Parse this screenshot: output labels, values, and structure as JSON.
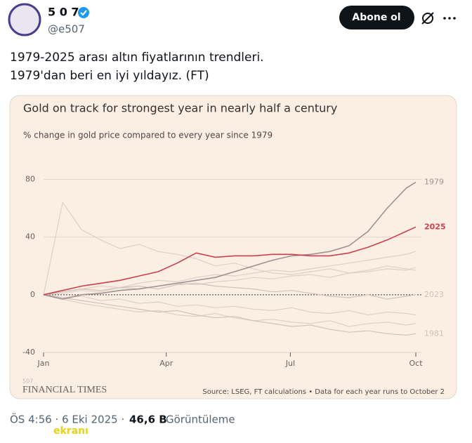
{
  "tweet": {
    "name": "5 0 7",
    "handle": "@e507",
    "button": "Abone ol",
    "text": [
      "1979-2025 arası altın fiyatlarının trendleri.",
      "1979'dan beri en iyi yıldayız. (FT)"
    ],
    "time": "ÖS 4:56 · 6 Eki 2025 ·",
    "views": "46,6 B",
    "views_label": "Görüntüleme",
    "watermark": "ekranı"
  },
  "chart_data": {
    "type": "line",
    "title": "Gold on track for strongest year in nearly half a century",
    "subtitle": "% change in gold price compared to every year since 1979",
    "source": "Source: LSEG, FT calculations • Data for each year runs to October 2",
    "brand": "FINANCIAL TIMES",
    "corner_mark": "507",
    "x": [
      0,
      14,
      28,
      42,
      56,
      70,
      84,
      98,
      112,
      126,
      140,
      154,
      168,
      182,
      196,
      210,
      224,
      238,
      252,
      266,
      273
    ],
    "xlim": [
      0,
      273
    ],
    "xticks": [
      {
        "value": 0,
        "label": "Jan"
      },
      {
        "value": 90,
        "label": "Apr"
      },
      {
        "value": 181,
        "label": "Jul"
      },
      {
        "value": 273,
        "label": "Oct"
      }
    ],
    "ylim": [
      -40,
      90
    ],
    "yticks": [
      -40,
      0,
      40,
      80
    ],
    "grid": true,
    "series": [
      {
        "color": "#ddd0c6",
        "values": [
          0,
          64,
          45,
          38,
          32,
          35,
          30,
          28,
          25,
          20,
          22,
          18,
          15,
          14,
          16,
          18,
          15,
          17,
          20,
          18,
          17
        ]
      },
      {
        "color": "#ddd0c6",
        "values": [
          0,
          2,
          4,
          6,
          5,
          8,
          10,
          9,
          12,
          14,
          13,
          15,
          17,
          16,
          18,
          20,
          22,
          24,
          26,
          28,
          30
        ]
      },
      {
        "color": "#ddd0c6",
        "values": [
          0,
          -3,
          -6,
          -8,
          -10,
          -12,
          -11,
          -14,
          -15,
          -13,
          -16,
          -18,
          -17,
          -19,
          -20,
          -18,
          -22,
          -20,
          -19,
          -21,
          -20
        ]
      },
      {
        "color": "#ddd0c6",
        "values": [
          0,
          1,
          3,
          2,
          5,
          4,
          6,
          8,
          7,
          9,
          10,
          12,
          11,
          13,
          14,
          12,
          15,
          16,
          18,
          17,
          19
        ]
      },
      {
        "color": "#ddd0c6",
        "values": [
          0,
          -2,
          -1,
          -4,
          -3,
          -6,
          -5,
          -8,
          -7,
          -9,
          -8,
          -10,
          -11,
          -9,
          -12,
          -13,
          -11,
          -14,
          -12,
          -13,
          -14
        ]
      },
      {
        "name": "2023",
        "color": "#cfc2b8",
        "values": [
          0,
          2,
          4,
          3,
          5,
          6,
          4,
          7,
          8,
          6,
          5,
          4,
          2,
          3,
          1,
          -1,
          -2,
          0,
          -3,
          -1,
          0
        ]
      },
      {
        "name": "1981",
        "color": "#cfc2b8",
        "values": [
          0,
          -2,
          -4,
          -6,
          -8,
          -10,
          -12,
          -11,
          -14,
          -16,
          -15,
          -18,
          -20,
          -22,
          -21,
          -24,
          -26,
          -25,
          -27,
          -28,
          -27
        ]
      },
      {
        "name": "1979",
        "color": "#9a9490",
        "values": [
          0,
          -3,
          0,
          1,
          3,
          4,
          6,
          8,
          10,
          12,
          16,
          20,
          24,
          27,
          28,
          30,
          34,
          44,
          60,
          74,
          78
        ]
      },
      {
        "name": "2025",
        "color": "#cc3f4f",
        "values": [
          0,
          3,
          6,
          8,
          10,
          13,
          16,
          22,
          29,
          26,
          27,
          27,
          28,
          28,
          27,
          27,
          29,
          33,
          38,
          44,
          47
        ]
      }
    ]
  }
}
